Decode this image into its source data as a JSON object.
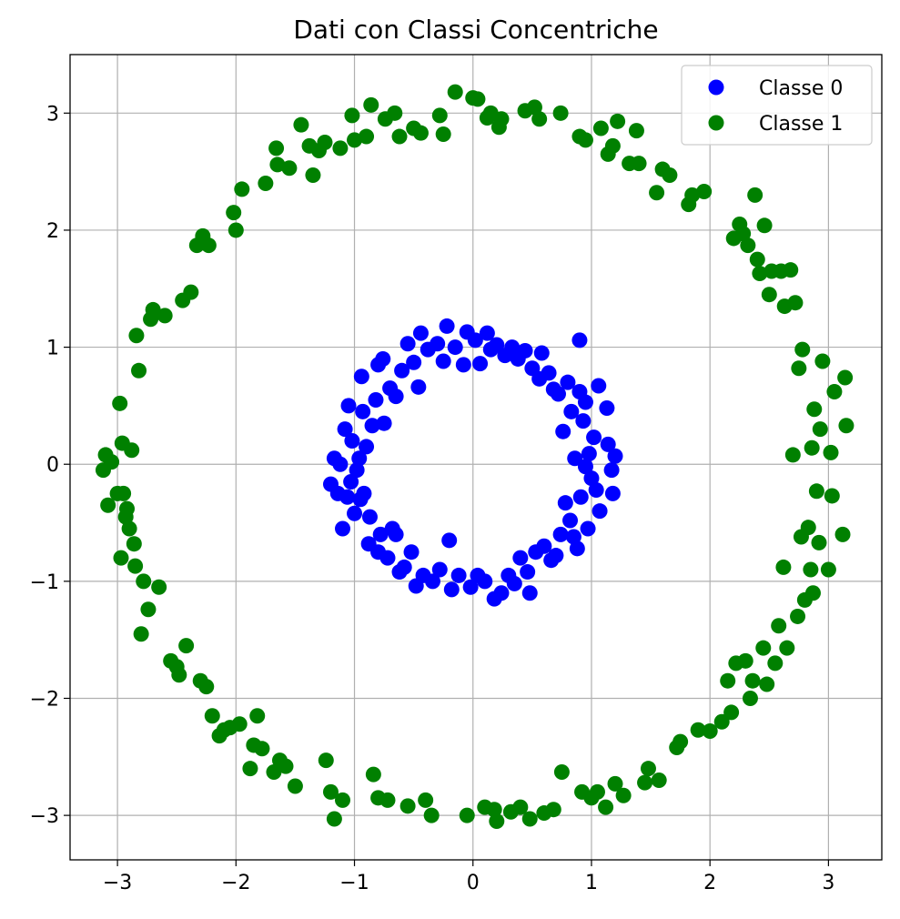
{
  "chart_data": {
    "type": "scatter",
    "title": "Dati con Classi Concentriche",
    "xlabel": "",
    "ylabel": "",
    "xlim": [
      -3.4,
      3.45
    ],
    "ylim": [
      -3.38,
      3.5
    ],
    "xticks": [
      -3,
      -2,
      -1,
      0,
      1,
      2,
      3
    ],
    "yticks": [
      -3,
      -2,
      -1,
      0,
      1,
      2,
      3
    ],
    "xtick_labels": [
      "−3",
      "−2",
      "−1",
      "0",
      "1",
      "2",
      "3"
    ],
    "ytick_labels": [
      "−3",
      "−2",
      "−1",
      "0",
      "1",
      "2",
      "3"
    ],
    "grid": true,
    "legend_position": "top-right",
    "series": [
      {
        "name": "Classe 0",
        "color": "#0000ff",
        "points": [
          [
            1.2,
            0.07
          ],
          [
            1.17,
            -0.05
          ],
          [
            1.18,
            -0.25
          ],
          [
            1.14,
            0.17
          ],
          [
            1.13,
            0.48
          ],
          [
            1.06,
            0.67
          ],
          [
            1.07,
            -0.4
          ],
          [
            1.04,
            -0.22
          ],
          [
            1.02,
            0.23
          ],
          [
            1.0,
            -0.12
          ],
          [
            0.98,
            0.09
          ],
          [
            0.97,
            -0.55
          ],
          [
            0.95,
            0.53
          ],
          [
            0.93,
            0.37
          ],
          [
            0.91,
            -0.28
          ],
          [
            0.9,
            0.62
          ],
          [
            0.9,
            1.06
          ],
          [
            0.88,
            -0.72
          ],
          [
            0.86,
            0.05
          ],
          [
            0.85,
            -0.62
          ],
          [
            0.83,
            0.45
          ],
          [
            0.82,
            -0.48
          ],
          [
            0.8,
            0.7
          ],
          [
            0.78,
            -0.33
          ],
          [
            0.76,
            0.28
          ],
          [
            0.74,
            -0.6
          ],
          [
            0.72,
            0.6
          ],
          [
            0.7,
            -0.78
          ],
          [
            0.68,
            0.64
          ],
          [
            0.66,
            -0.82
          ],
          [
            0.64,
            0.78
          ],
          [
            0.6,
            -0.7
          ],
          [
            0.58,
            0.95
          ],
          [
            0.56,
            0.73
          ],
          [
            0.53,
            -0.75
          ],
          [
            0.5,
            0.82
          ],
          [
            0.48,
            -1.1
          ],
          [
            0.46,
            -0.92
          ],
          [
            0.44,
            0.97
          ],
          [
            0.4,
            -0.8
          ],
          [
            0.38,
            0.9
          ],
          [
            0.35,
            -1.02
          ],
          [
            0.33,
            1.0
          ],
          [
            0.3,
            -0.95
          ],
          [
            0.27,
            0.93
          ],
          [
            0.24,
            -1.1
          ],
          [
            0.2,
            1.02
          ],
          [
            0.18,
            -1.15
          ],
          [
            0.15,
            0.98
          ],
          [
            0.12,
            1.12
          ],
          [
            0.1,
            -1.0
          ],
          [
            0.06,
            0.86
          ],
          [
            0.04,
            -0.95
          ],
          [
            0.02,
            1.06
          ],
          [
            -0.02,
            -1.05
          ],
          [
            -0.05,
            1.13
          ],
          [
            -0.08,
            0.85
          ],
          [
            -0.12,
            -0.95
          ],
          [
            -0.15,
            1.0
          ],
          [
            -0.18,
            -1.07
          ],
          [
            -0.2,
            -0.65
          ],
          [
            -0.22,
            1.18
          ],
          [
            -0.25,
            0.88
          ],
          [
            -0.28,
            -0.9
          ],
          [
            -0.3,
            1.03
          ],
          [
            -0.34,
            -1.0
          ],
          [
            -0.38,
            0.98
          ],
          [
            -0.42,
            -0.95
          ],
          [
            -0.44,
            1.12
          ],
          [
            -0.46,
            0.66
          ],
          [
            -0.48,
            -1.04
          ],
          [
            -0.5,
            0.87
          ],
          [
            -0.52,
            -0.75
          ],
          [
            -0.55,
            1.03
          ],
          [
            -0.58,
            -0.88
          ],
          [
            -0.6,
            0.8
          ],
          [
            -0.62,
            -0.92
          ],
          [
            -0.65,
            0.58
          ],
          [
            -0.68,
            -0.55
          ],
          [
            -0.7,
            0.65
          ],
          [
            -0.72,
            -0.8
          ],
          [
            -0.75,
            0.35
          ],
          [
            -0.76,
            0.9
          ],
          [
            -0.78,
            -0.6
          ],
          [
            -0.8,
            -0.75
          ],
          [
            -0.82,
            0.55
          ],
          [
            -0.85,
            0.33
          ],
          [
            -0.87,
            -0.45
          ],
          [
            -0.88,
            -0.68
          ],
          [
            -0.9,
            0.15
          ],
          [
            -0.92,
            -0.25
          ],
          [
            -0.93,
            0.45
          ],
          [
            -0.94,
            0.75
          ],
          [
            -0.95,
            -0.3
          ],
          [
            -0.96,
            0.05
          ],
          [
            -0.98,
            -0.05
          ],
          [
            -1.0,
            -0.42
          ],
          [
            -1.02,
            0.2
          ],
          [
            -1.03,
            -0.15
          ],
          [
            -1.05,
            0.5
          ],
          [
            -1.06,
            -0.28
          ],
          [
            -1.08,
            0.3
          ],
          [
            -1.1,
            -0.55
          ],
          [
            -1.12,
            0.0
          ],
          [
            -1.14,
            -0.25
          ],
          [
            -1.17,
            0.05
          ],
          [
            -1.2,
            -0.17
          ],
          [
            -0.8,
            0.85
          ],
          [
            0.95,
            -0.02
          ],
          [
            -0.65,
            -0.6
          ]
        ]
      },
      {
        "name": "Classe 1",
        "color": "#008000",
        "points": [
          [
            3.15,
            0.33
          ],
          [
            3.14,
            0.74
          ],
          [
            3.12,
            -0.6
          ],
          [
            3.05,
            0.62
          ],
          [
            3.03,
            -0.27
          ],
          [
            3.02,
            0.1
          ],
          [
            3.0,
            -0.9
          ],
          [
            2.95,
            0.88
          ],
          [
            2.93,
            0.3
          ],
          [
            2.92,
            -0.67
          ],
          [
            2.9,
            -0.23
          ],
          [
            2.88,
            0.47
          ],
          [
            2.87,
            -1.1
          ],
          [
            2.86,
            0.14
          ],
          [
            2.85,
            -0.9
          ],
          [
            2.83,
            -0.54
          ],
          [
            2.8,
            -1.16
          ],
          [
            2.78,
            0.98
          ],
          [
            2.77,
            -0.62
          ],
          [
            2.75,
            0.82
          ],
          [
            2.74,
            -1.3
          ],
          [
            2.72,
            1.38
          ],
          [
            2.7,
            0.08
          ],
          [
            2.68,
            1.66
          ],
          [
            2.65,
            -1.57
          ],
          [
            2.63,
            1.35
          ],
          [
            2.62,
            -0.88
          ],
          [
            2.6,
            1.65
          ],
          [
            2.58,
            -1.38
          ],
          [
            2.55,
            -1.7
          ],
          [
            2.52,
            1.65
          ],
          [
            2.5,
            1.45
          ],
          [
            2.48,
            -1.88
          ],
          [
            2.46,
            2.04
          ],
          [
            2.45,
            -1.57
          ],
          [
            2.42,
            1.63
          ],
          [
            2.4,
            1.75
          ],
          [
            2.38,
            2.3
          ],
          [
            2.36,
            -1.85
          ],
          [
            2.34,
            -2.0
          ],
          [
            2.32,
            1.87
          ],
          [
            2.3,
            -1.68
          ],
          [
            2.28,
            1.97
          ],
          [
            2.25,
            2.05
          ],
          [
            2.22,
            -1.7
          ],
          [
            2.2,
            1.93
          ],
          [
            2.18,
            -2.12
          ],
          [
            2.15,
            -1.85
          ],
          [
            2.1,
            -2.2
          ],
          [
            2.0,
            -2.28
          ],
          [
            1.95,
            2.33
          ],
          [
            1.9,
            -2.27
          ],
          [
            1.85,
            2.3
          ],
          [
            1.82,
            2.22
          ],
          [
            1.75,
            -2.37
          ],
          [
            1.72,
            -2.42
          ],
          [
            1.66,
            2.47
          ],
          [
            1.6,
            2.52
          ],
          [
            1.57,
            -2.7
          ],
          [
            1.55,
            2.32
          ],
          [
            1.48,
            -2.6
          ],
          [
            1.45,
            -2.72
          ],
          [
            1.4,
            2.57
          ],
          [
            1.38,
            2.85
          ],
          [
            1.32,
            2.57
          ],
          [
            1.27,
            -2.83
          ],
          [
            1.22,
            2.93
          ],
          [
            1.2,
            -2.73
          ],
          [
            1.18,
            2.72
          ],
          [
            1.14,
            2.65
          ],
          [
            1.12,
            -2.93
          ],
          [
            1.08,
            2.87
          ],
          [
            1.05,
            -2.8
          ],
          [
            1.0,
            -2.85
          ],
          [
            0.95,
            2.77
          ],
          [
            0.92,
            -2.8
          ],
          [
            0.9,
            2.8
          ],
          [
            0.75,
            -2.63
          ],
          [
            0.74,
            3.0
          ],
          [
            0.68,
            -2.95
          ],
          [
            0.6,
            -2.98
          ],
          [
            0.56,
            2.95
          ],
          [
            0.52,
            3.05
          ],
          [
            0.48,
            -3.03
          ],
          [
            0.44,
            3.02
          ],
          [
            0.4,
            -2.93
          ],
          [
            0.32,
            -2.97
          ],
          [
            0.24,
            2.95
          ],
          [
            0.22,
            2.88
          ],
          [
            0.2,
            -3.05
          ],
          [
            0.18,
            -2.95
          ],
          [
            0.15,
            3.0
          ],
          [
            0.12,
            2.96
          ],
          [
            0.1,
            -2.93
          ],
          [
            0.04,
            3.12
          ],
          [
            0.0,
            3.13
          ],
          [
            -0.05,
            -3.0
          ],
          [
            -0.15,
            3.18
          ],
          [
            -0.25,
            2.82
          ],
          [
            -0.28,
            2.98
          ],
          [
            -0.35,
            -3.0
          ],
          [
            -0.4,
            -2.87
          ],
          [
            -0.44,
            2.83
          ],
          [
            -0.5,
            2.87
          ],
          [
            -0.55,
            -2.92
          ],
          [
            -0.62,
            2.8
          ],
          [
            -0.66,
            3.0
          ],
          [
            -0.72,
            -2.87
          ],
          [
            -0.74,
            2.95
          ],
          [
            -0.8,
            -2.85
          ],
          [
            -0.84,
            -2.65
          ],
          [
            -0.86,
            3.07
          ],
          [
            -0.9,
            2.8
          ],
          [
            -1.0,
            2.77
          ],
          [
            -1.02,
            2.98
          ],
          [
            -1.1,
            -2.87
          ],
          [
            -1.12,
            2.7
          ],
          [
            -1.17,
            -3.03
          ],
          [
            -1.2,
            -2.8
          ],
          [
            -1.24,
            -2.53
          ],
          [
            -1.25,
            2.75
          ],
          [
            -1.3,
            2.68
          ],
          [
            -1.35,
            2.47
          ],
          [
            -1.38,
            2.72
          ],
          [
            -1.45,
            2.9
          ],
          [
            -1.5,
            -2.75
          ],
          [
            -1.55,
            2.53
          ],
          [
            -1.58,
            -2.58
          ],
          [
            -1.63,
            -2.53
          ],
          [
            -1.65,
            2.56
          ],
          [
            -1.66,
            2.7
          ],
          [
            -1.68,
            -2.63
          ],
          [
            -1.75,
            2.4
          ],
          [
            -1.78,
            -2.43
          ],
          [
            -1.82,
            -2.15
          ],
          [
            -1.85,
            -2.4
          ],
          [
            -1.88,
            -2.6
          ],
          [
            -1.95,
            2.35
          ],
          [
            -1.97,
            -2.22
          ],
          [
            -2.0,
            2.0
          ],
          [
            -2.02,
            2.15
          ],
          [
            -2.05,
            -2.25
          ],
          [
            -2.1,
            -2.27
          ],
          [
            -2.14,
            -2.32
          ],
          [
            -2.2,
            -2.15
          ],
          [
            -2.23,
            1.87
          ],
          [
            -2.25,
            -1.9
          ],
          [
            -2.28,
            1.95
          ],
          [
            -2.3,
            -1.85
          ],
          [
            -2.33,
            1.87
          ],
          [
            -2.38,
            1.47
          ],
          [
            -2.42,
            -1.55
          ],
          [
            -2.45,
            1.4
          ],
          [
            -2.48,
            -1.8
          ],
          [
            -2.5,
            -1.73
          ],
          [
            -2.55,
            -1.68
          ],
          [
            -2.6,
            1.27
          ],
          [
            -2.65,
            -1.05
          ],
          [
            -2.7,
            1.32
          ],
          [
            -2.72,
            1.24
          ],
          [
            -2.74,
            -1.24
          ],
          [
            -2.78,
            -1.0
          ],
          [
            -2.8,
            -1.45
          ],
          [
            -2.82,
            0.8
          ],
          [
            -2.84,
            1.1
          ],
          [
            -2.85,
            -0.87
          ],
          [
            -2.86,
            -0.68
          ],
          [
            -2.88,
            0.12
          ],
          [
            -2.9,
            -0.55
          ],
          [
            -2.92,
            -0.38
          ],
          [
            -2.93,
            -0.45
          ],
          [
            -2.95,
            -0.25
          ],
          [
            -2.96,
            0.18
          ],
          [
            -2.97,
            -0.8
          ],
          [
            -2.98,
            0.52
          ],
          [
            -3.0,
            -0.25
          ],
          [
            -3.05,
            0.02
          ],
          [
            -3.08,
            -0.35
          ],
          [
            -3.1,
            0.08
          ],
          [
            -3.12,
            -0.05
          ]
        ]
      }
    ]
  }
}
